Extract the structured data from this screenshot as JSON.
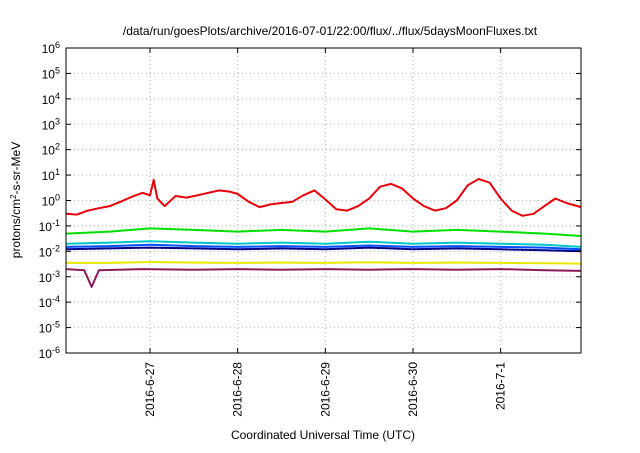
{
  "chart_data": {
    "type": "line",
    "title": "/data/run/goesPlots/archive/2016-07-01/22:00/flux/../flux/5daysMoonFluxes.txt",
    "xlabel": "Coordinated Universal Time (UTC)",
    "ylabel_prefix": "protons/cm",
    "ylabel_sup": "2",
    "ylabel_suffix": "-s-sr-MeV",
    "y_scale": "log",
    "ylim_exponents": [
      -6,
      6
    ],
    "y_ticks": [
      {
        "base": "10",
        "exp": "-6",
        "value_exp": -6
      },
      {
        "base": "10",
        "exp": "-5",
        "value_exp": -5
      },
      {
        "base": "10",
        "exp": "-4",
        "value_exp": -4
      },
      {
        "base": "10",
        "exp": "-3",
        "value_exp": -3
      },
      {
        "base": "10",
        "exp": "-2",
        "value_exp": -2
      },
      {
        "base": "10",
        "exp": "-1",
        "value_exp": -1
      },
      {
        "base": "10",
        "exp": "0",
        "value_exp": 0
      },
      {
        "base": "10",
        "exp": "1",
        "value_exp": 1
      },
      {
        "base": "10",
        "exp": "2",
        "value_exp": 2
      },
      {
        "base": "10",
        "exp": "3",
        "value_exp": 3
      },
      {
        "base": "10",
        "exp": "4",
        "value_exp": 4
      },
      {
        "base": "10",
        "exp": "5",
        "value_exp": 5
      },
      {
        "base": "10",
        "exp": "6",
        "value_exp": 6
      }
    ],
    "xlim": [
      "2016-06-26T01:00",
      "2016-07-01T22:00"
    ],
    "x_ticks": [
      {
        "label": "2016-6-27",
        "date": "2016-06-27T00:00"
      },
      {
        "label": "2016-6-28",
        "date": "2016-06-28T00:00"
      },
      {
        "label": "2016-6-29",
        "date": "2016-06-29T00:00"
      },
      {
        "label": "2016-6-30",
        "date": "2016-06-30T00:00"
      },
      {
        "label": "2016-7-1",
        "date": "2016-07-01T00:00"
      }
    ],
    "grid": true,
    "series": [
      {
        "color": "#e8000b",
        "points": [
          [
            "2016-06-26T01:00",
            0.3
          ],
          [
            "2016-06-26T04:00",
            0.28
          ],
          [
            "2016-06-26T07:00",
            0.4
          ],
          [
            "2016-06-26T10:00",
            0.5
          ],
          [
            "2016-06-26T13:00",
            0.6
          ],
          [
            "2016-06-26T16:00",
            0.9
          ],
          [
            "2016-06-26T19:00",
            1.4
          ],
          [
            "2016-06-26T22:00",
            2.0
          ],
          [
            "2016-06-27T00:00",
            1.6
          ],
          [
            "2016-06-27T01:00",
            6.5
          ],
          [
            "2016-06-27T02:00",
            1.2
          ],
          [
            "2016-06-27T04:00",
            0.6
          ],
          [
            "2016-06-27T07:00",
            1.5
          ],
          [
            "2016-06-27T10:00",
            1.3
          ],
          [
            "2016-06-27T13:00",
            1.6
          ],
          [
            "2016-06-27T16:00",
            2.0
          ],
          [
            "2016-06-27T19:00",
            2.5
          ],
          [
            "2016-06-27T22:00",
            2.2
          ],
          [
            "2016-06-28T00:00",
            1.8
          ],
          [
            "2016-06-28T03:00",
            0.9
          ],
          [
            "2016-06-28T06:00",
            0.55
          ],
          [
            "2016-06-28T09:00",
            0.7
          ],
          [
            "2016-06-28T12:00",
            0.8
          ],
          [
            "2016-06-28T15:00",
            0.9
          ],
          [
            "2016-06-28T18:00",
            1.6
          ],
          [
            "2016-06-28T21:00",
            2.5
          ],
          [
            "2016-06-29T00:00",
            1.1
          ],
          [
            "2016-06-29T03:00",
            0.45
          ],
          [
            "2016-06-29T06:00",
            0.4
          ],
          [
            "2016-06-29T09:00",
            0.6
          ],
          [
            "2016-06-29T12:00",
            1.2
          ],
          [
            "2016-06-29T15:00",
            3.5
          ],
          [
            "2016-06-29T18:00",
            4.5
          ],
          [
            "2016-06-29T21:00",
            3.0
          ],
          [
            "2016-06-30T00:00",
            1.2
          ],
          [
            "2016-06-30T03:00",
            0.6
          ],
          [
            "2016-06-30T06:00",
            0.4
          ],
          [
            "2016-06-30T09:00",
            0.5
          ],
          [
            "2016-06-30T12:00",
            1.0
          ],
          [
            "2016-06-30T15:00",
            4.0
          ],
          [
            "2016-06-30T18:00",
            7.0
          ],
          [
            "2016-06-30T21:00",
            5.0
          ],
          [
            "2016-07-01T00:00",
            1.2
          ],
          [
            "2016-07-01T03:00",
            0.4
          ],
          [
            "2016-07-01T06:00",
            0.25
          ],
          [
            "2016-07-01T09:00",
            0.3
          ],
          [
            "2016-07-01T12:00",
            0.6
          ],
          [
            "2016-07-01T15:00",
            1.2
          ],
          [
            "2016-07-01T18:00",
            0.8
          ],
          [
            "2016-07-01T22:00",
            0.55
          ]
        ]
      },
      {
        "color": "#00e000",
        "points": [
          [
            "2016-06-26T01:00",
            0.05
          ],
          [
            "2016-06-26T13:00",
            0.06
          ],
          [
            "2016-06-27T00:00",
            0.08
          ],
          [
            "2016-06-27T12:00",
            0.07
          ],
          [
            "2016-06-28T00:00",
            0.06
          ],
          [
            "2016-06-28T12:00",
            0.07
          ],
          [
            "2016-06-29T00:00",
            0.06
          ],
          [
            "2016-06-29T12:00",
            0.08
          ],
          [
            "2016-06-30T00:00",
            0.06
          ],
          [
            "2016-06-30T12:00",
            0.07
          ],
          [
            "2016-07-01T00:00",
            0.06
          ],
          [
            "2016-07-01T12:00",
            0.05
          ],
          [
            "2016-07-01T22:00",
            0.04
          ]
        ]
      },
      {
        "color": "#00c8c8",
        "points": [
          [
            "2016-06-26T01:00",
            0.02
          ],
          [
            "2016-06-26T13:00",
            0.022
          ],
          [
            "2016-06-27T00:00",
            0.025
          ],
          [
            "2016-06-27T12:00",
            0.022
          ],
          [
            "2016-06-28T00:00",
            0.02
          ],
          [
            "2016-06-28T12:00",
            0.022
          ],
          [
            "2016-06-29T00:00",
            0.02
          ],
          [
            "2016-06-29T12:00",
            0.024
          ],
          [
            "2016-06-30T00:00",
            0.02
          ],
          [
            "2016-06-30T12:00",
            0.022
          ],
          [
            "2016-07-01T00:00",
            0.02
          ],
          [
            "2016-07-01T12:00",
            0.018
          ],
          [
            "2016-07-01T22:00",
            0.015
          ]
        ]
      },
      {
        "color": "#0050ff",
        "points": [
          [
            "2016-06-26T01:00",
            0.015
          ],
          [
            "2016-06-26T13:00",
            0.016
          ],
          [
            "2016-06-27T00:00",
            0.018
          ],
          [
            "2016-06-27T12:00",
            0.016
          ],
          [
            "2016-06-28T00:00",
            0.015
          ],
          [
            "2016-06-28T12:00",
            0.016
          ],
          [
            "2016-06-29T00:00",
            0.015
          ],
          [
            "2016-06-29T12:00",
            0.017
          ],
          [
            "2016-06-30T00:00",
            0.015
          ],
          [
            "2016-06-30T12:00",
            0.016
          ],
          [
            "2016-07-01T00:00",
            0.015
          ],
          [
            "2016-07-01T12:00",
            0.014
          ],
          [
            "2016-07-01T22:00",
            0.012
          ]
        ]
      },
      {
        "color": "#00008b",
        "points": [
          [
            "2016-06-26T01:00",
            0.012
          ],
          [
            "2016-06-26T13:00",
            0.013
          ],
          [
            "2016-06-27T00:00",
            0.014
          ],
          [
            "2016-06-27T12:00",
            0.013
          ],
          [
            "2016-06-28T00:00",
            0.012
          ],
          [
            "2016-06-28T12:00",
            0.013
          ],
          [
            "2016-06-29T00:00",
            0.012
          ],
          [
            "2016-06-29T12:00",
            0.014
          ],
          [
            "2016-06-30T00:00",
            0.012
          ],
          [
            "2016-06-30T12:00",
            0.013
          ],
          [
            "2016-07-01T00:00",
            0.012
          ],
          [
            "2016-07-01T12:00",
            0.011
          ],
          [
            "2016-07-01T22:00",
            0.01
          ]
        ]
      },
      {
        "color": "#e8e800",
        "points": [
          [
            "2016-06-26T01:00",
            0.0035
          ],
          [
            "2016-06-26T13:00",
            0.0035
          ],
          [
            "2016-06-27T00:00",
            0.0038
          ],
          [
            "2016-06-27T12:00",
            0.0036
          ],
          [
            "2016-06-28T00:00",
            0.0035
          ],
          [
            "2016-06-28T12:00",
            0.0036
          ],
          [
            "2016-06-29T00:00",
            0.0035
          ],
          [
            "2016-06-29T12:00",
            0.0037
          ],
          [
            "2016-06-30T00:00",
            0.0035
          ],
          [
            "2016-06-30T12:00",
            0.0036
          ],
          [
            "2016-07-01T00:00",
            0.0035
          ],
          [
            "2016-07-01T12:00",
            0.0034
          ],
          [
            "2016-07-01T22:00",
            0.0033
          ]
        ]
      },
      {
        "color": "#8b1a5a",
        "points": [
          [
            "2016-06-26T01:00",
            0.002
          ],
          [
            "2016-06-26T06:00",
            0.0018
          ],
          [
            "2016-06-26T08:00",
            0.0004
          ],
          [
            "2016-06-26T10:00",
            0.0018
          ],
          [
            "2016-06-26T22:00",
            0.002
          ],
          [
            "2016-06-27T12:00",
            0.0019
          ],
          [
            "2016-06-28T00:00",
            0.002
          ],
          [
            "2016-06-28T12:00",
            0.0019
          ],
          [
            "2016-06-29T00:00",
            0.002
          ],
          [
            "2016-06-29T12:00",
            0.0019
          ],
          [
            "2016-06-30T00:00",
            0.002
          ],
          [
            "2016-06-30T12:00",
            0.0019
          ],
          [
            "2016-07-01T00:00",
            0.002
          ],
          [
            "2016-07-01T12:00",
            0.0018
          ],
          [
            "2016-07-01T22:00",
            0.0017
          ]
        ]
      }
    ]
  }
}
